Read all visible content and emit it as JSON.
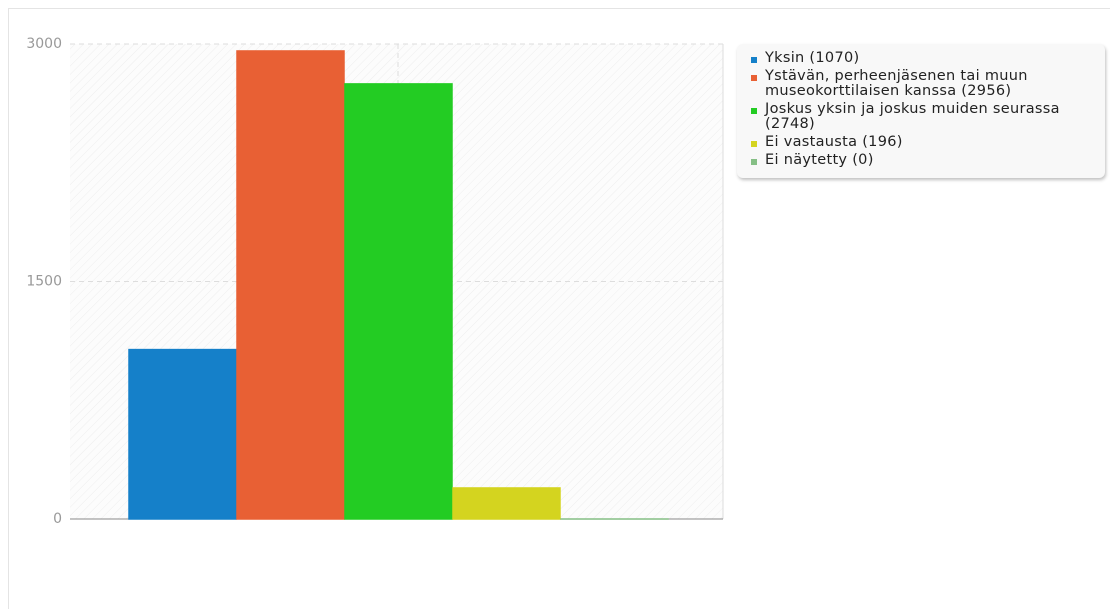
{
  "chart_data": {
    "type": "bar",
    "series": [
      {
        "name": "Yksin (1070)",
        "color": "#1580c9",
        "values": [
          1070
        ]
      },
      {
        "name": "Ystävän, perheenjäsenen tai muun museokorttilaisen kanssa (2956)",
        "color": "#e86034",
        "values": [
          2956
        ]
      },
      {
        "name": "Joskus yksin ja joskus muiden seurassa (2748)",
        "color": "#23cc23",
        "values": [
          2748
        ]
      },
      {
        "name": "Ei vastausta (196)",
        "color": "#d4d41f",
        "values": [
          196
        ]
      },
      {
        "name": "Ei näytetty (0)",
        "color": "#85bf85",
        "values": [
          0
        ]
      }
    ],
    "ylim": [
      0,
      3000
    ],
    "yticks": [
      0,
      1500,
      3000
    ],
    "grid": true,
    "legend": "right"
  }
}
